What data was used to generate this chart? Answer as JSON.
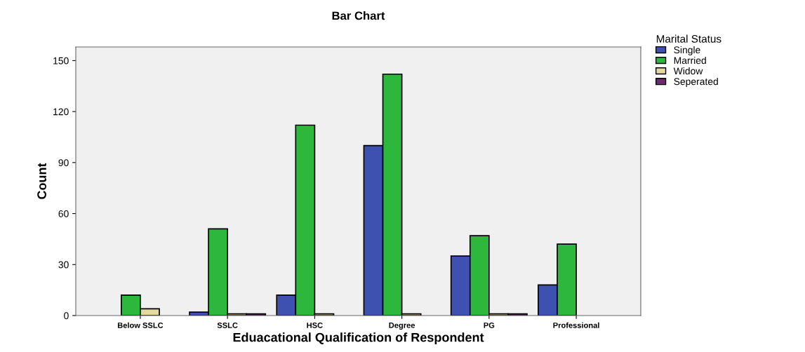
{
  "chart_data": {
    "type": "bar",
    "title": "Bar Chart",
    "xlabel": "Eduacational Qualification of Respondent",
    "ylabel": "Count",
    "legend_title": "Marital Status",
    "categories": [
      "Below SSLC",
      "SSLC",
      "HSC",
      "Degree",
      "PG",
      "Professional"
    ],
    "series": [
      {
        "name": "Single",
        "color": "#3f51b0",
        "values": [
          null,
          2,
          12,
          100,
          35,
          18
        ]
      },
      {
        "name": "Married",
        "color": "#2db83d",
        "values": [
          12,
          51,
          112,
          142,
          47,
          42
        ]
      },
      {
        "name": "Widow",
        "color": "#e6d9a0",
        "values": [
          4,
          1,
          1,
          1,
          1,
          null
        ]
      },
      {
        "name": "Seperated",
        "color": "#6b2a6b",
        "values": [
          null,
          1,
          null,
          null,
          1,
          null
        ]
      }
    ],
    "ylim": [
      0,
      158
    ],
    "yticks": [
      0,
      30,
      60,
      90,
      120,
      150
    ],
    "grid": false,
    "legend": "top right"
  }
}
